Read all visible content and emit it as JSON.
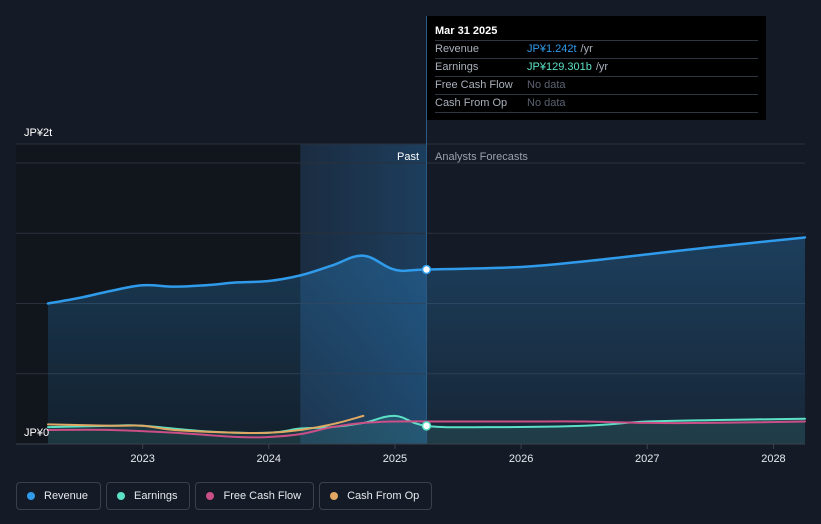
{
  "colors": {
    "revenue": "#2f9bea",
    "earnings": "#5ce1c6",
    "free_cash_flow": "#c94f86",
    "cash_from_op": "#e0a862",
    "background": "#151b26"
  },
  "tooltip": {
    "date": "Mar 31 2025",
    "rows": [
      {
        "name": "Revenue",
        "value": "JP¥1.242t",
        "unit": "/yr"
      },
      {
        "name": "Earnings",
        "value": "JP¥129.301b",
        "unit": "/yr"
      },
      {
        "name": "Free Cash Flow",
        "value": "No data",
        "unit": ""
      },
      {
        "name": "Cash From Op",
        "value": "No data",
        "unit": ""
      }
    ]
  },
  "legend": [
    {
      "label": "Revenue",
      "color": "#2f9bea"
    },
    {
      "label": "Earnings",
      "color": "#5ce1c6"
    },
    {
      "label": "Free Cash Flow",
      "color": "#c94f86"
    },
    {
      "label": "Cash From Op",
      "color": "#e0a862"
    }
  ],
  "chart_data": {
    "type": "line",
    "y_top_label": "JP¥2t",
    "y_bottom_label": "JP¥0",
    "ylim": [
      0,
      2.0
    ],
    "y_unit": "JP¥ trillion",
    "xlim": [
      2022.25,
      2028.25
    ],
    "x_ticks": [
      "2023",
      "2024",
      "2025",
      "2026",
      "2027",
      "2028"
    ],
    "x_tick_values": [
      2023,
      2024,
      2025,
      2026,
      2027,
      2028
    ],
    "past_label": "Past",
    "forecast_label": "Analysts Forecasts",
    "highlight_start": 2024.25,
    "divider_x": 2025.25,
    "grid": true,
    "series": [
      {
        "name": "Revenue",
        "color": "#2f9bea",
        "points": [
          [
            2022.25,
            1.0
          ],
          [
            2022.5,
            1.04
          ],
          [
            2022.75,
            1.09
          ],
          [
            2023.0,
            1.13
          ],
          [
            2023.25,
            1.12
          ],
          [
            2023.5,
            1.13
          ],
          [
            2023.75,
            1.15
          ],
          [
            2024.0,
            1.16
          ],
          [
            2024.25,
            1.2
          ],
          [
            2024.5,
            1.27
          ],
          [
            2024.75,
            1.34
          ],
          [
            2025.0,
            1.24
          ],
          [
            2025.25,
            1.242
          ],
          [
            2026.0,
            1.26
          ],
          [
            2026.5,
            1.3
          ],
          [
            2027.0,
            1.35
          ],
          [
            2027.5,
            1.4
          ],
          [
            2028.25,
            1.47
          ]
        ],
        "fill": true
      },
      {
        "name": "Earnings",
        "color": "#5ce1c6",
        "points": [
          [
            2022.25,
            0.12
          ],
          [
            2022.75,
            0.13
          ],
          [
            2023.0,
            0.13
          ],
          [
            2023.5,
            0.09
          ],
          [
            2024.0,
            0.08
          ],
          [
            2024.25,
            0.11
          ],
          [
            2024.5,
            0.12
          ],
          [
            2024.75,
            0.15
          ],
          [
            2025.0,
            0.2
          ],
          [
            2025.25,
            0.129
          ],
          [
            2025.75,
            0.12
          ],
          [
            2026.5,
            0.13
          ],
          [
            2027.0,
            0.16
          ],
          [
            2027.5,
            0.17
          ],
          [
            2028.25,
            0.18
          ]
        ],
        "fill": true
      },
      {
        "name": "Free Cash Flow",
        "color": "#c94f86",
        "points": [
          [
            2022.25,
            0.1
          ],
          [
            2022.75,
            0.1
          ],
          [
            2023.25,
            0.08
          ],
          [
            2023.75,
            0.05
          ],
          [
            2024.0,
            0.05
          ],
          [
            2024.25,
            0.07
          ],
          [
            2024.5,
            0.12
          ],
          [
            2024.75,
            0.15
          ],
          [
            2025.0,
            0.16
          ],
          [
            2025.5,
            0.16
          ],
          [
            2026.0,
            0.16
          ],
          [
            2026.5,
            0.16
          ],
          [
            2027.0,
            0.15
          ],
          [
            2027.5,
            0.15
          ],
          [
            2028.25,
            0.16
          ]
        ],
        "fill": false
      },
      {
        "name": "Cash From Op",
        "color": "#e0a862",
        "points": [
          [
            2022.25,
            0.14
          ],
          [
            2022.75,
            0.13
          ],
          [
            2023.0,
            0.13
          ],
          [
            2023.25,
            0.1
          ],
          [
            2023.75,
            0.08
          ],
          [
            2024.0,
            0.08
          ],
          [
            2024.25,
            0.1
          ],
          [
            2024.5,
            0.14
          ],
          [
            2024.75,
            0.2
          ]
        ],
        "fill": false
      }
    ]
  }
}
